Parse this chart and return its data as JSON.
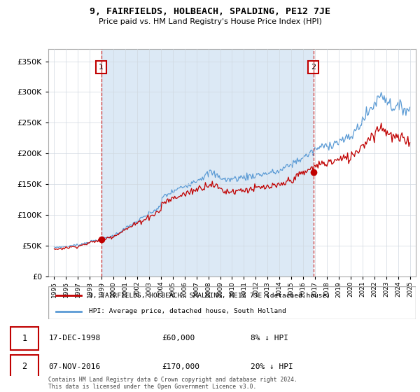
{
  "title": "9, FAIRFIELDS, HOLBEACH, SPALDING, PE12 7JE",
  "subtitle": "Price paid vs. HM Land Registry's House Price Index (HPI)",
  "legend_line1": "9, FAIRFIELDS, HOLBEACH, SPALDING, PE12 7JE (detached house)",
  "legend_line2": "HPI: Average price, detached house, South Holland",
  "annotation1_date": "17-DEC-1998",
  "annotation1_price": "£60,000",
  "annotation1_hpi": "8% ↓ HPI",
  "annotation2_date": "07-NOV-2016",
  "annotation2_price": "£170,000",
  "annotation2_hpi": "20% ↓ HPI",
  "footer": "Contains HM Land Registry data © Crown copyright and database right 2024.\nThis data is licensed under the Open Government Licence v3.0.",
  "sale1_year": 1998.96,
  "sale1_price": 60000,
  "sale2_year": 2016.85,
  "sale2_price": 170000,
  "hpi_color": "#5b9bd5",
  "price_color": "#c00000",
  "shade_color": "#dce9f5",
  "ylim_min": 0,
  "ylim_max": 370000,
  "yticks": [
    0,
    50000,
    100000,
    150000,
    200000,
    250000,
    300000,
    350000
  ],
  "xlim_min": 1994.5,
  "xlim_max": 2025.5
}
